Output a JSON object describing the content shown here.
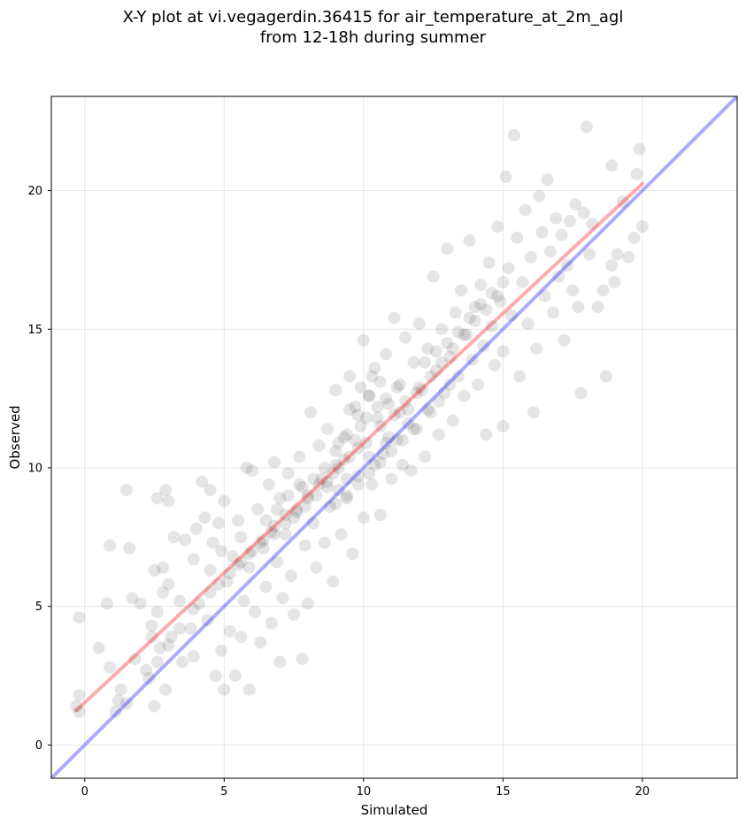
{
  "chart_data": {
    "type": "scatter",
    "title": "X-Y plot at vi.vegagerdin.36415 for air_temperature_at_2m_agl",
    "subtitle": "from 12-18h during summer",
    "xlabel": "Simulated",
    "ylabel": "Observed",
    "xlim": [
      -1.2,
      23.4
    ],
    "ylim": [
      -1.2,
      23.4
    ],
    "xticks": [
      "0",
      "5",
      "10",
      "15",
      "20"
    ],
    "yticks": [
      "0",
      "5",
      "10",
      "15",
      "20"
    ],
    "grid": true,
    "point_color": "#000000",
    "point_opacity": 0.1,
    "points": [
      [
        -0.2,
        4.6
      ],
      [
        -0.2,
        1.8
      ],
      [
        -0.3,
        1.4
      ],
      [
        -0.2,
        1.2
      ],
      [
        0.5,
        3.5
      ],
      [
        0.8,
        5.1
      ],
      [
        0.9,
        7.2
      ],
      [
        0.9,
        2.8
      ],
      [
        1.1,
        1.2
      ],
      [
        1.2,
        1.6
      ],
      [
        1.3,
        2.0
      ],
      [
        1.5,
        9.2
      ],
      [
        1.5,
        1.5
      ],
      [
        1.6,
        7.1
      ],
      [
        1.7,
        5.3
      ],
      [
        1.8,
        3.1
      ],
      [
        2.0,
        5.1
      ],
      [
        2.2,
        2.7
      ],
      [
        2.3,
        2.4
      ],
      [
        2.4,
        3.9
      ],
      [
        2.4,
        4.3
      ],
      [
        2.5,
        6.3
      ],
      [
        2.5,
        1.4
      ],
      [
        2.6,
        4.8
      ],
      [
        2.6,
        8.9
      ],
      [
        2.7,
        3.5
      ],
      [
        2.8,
        5.5
      ],
      [
        2.8,
        6.4
      ],
      [
        2.9,
        2.0
      ],
      [
        2.9,
        9.2
      ],
      [
        3.0,
        8.8
      ],
      [
        3.0,
        5.8
      ],
      [
        3.1,
        3.9
      ],
      [
        3.2,
        7.5
      ],
      [
        3.4,
        5.2
      ],
      [
        3.5,
        3.0
      ],
      [
        3.6,
        7.4
      ],
      [
        3.8,
        4.2
      ],
      [
        3.9,
        6.7
      ],
      [
        3.9,
        3.2
      ],
      [
        4.0,
        7.8
      ],
      [
        4.1,
        5.1
      ],
      [
        4.2,
        9.5
      ],
      [
        4.3,
        8.2
      ],
      [
        4.4,
        4.5
      ],
      [
        4.5,
        6.3
      ],
      [
        4.5,
        9.2
      ],
      [
        4.6,
        7.3
      ],
      [
        4.7,
        2.5
      ],
      [
        4.8,
        8.0
      ],
      [
        4.9,
        3.4
      ],
      [
        4.9,
        7.0
      ],
      [
        5.0,
        8.8
      ],
      [
        5.0,
        2.0
      ],
      [
        5.1,
        5.9
      ],
      [
        5.2,
        4.1
      ],
      [
        5.3,
        6.8
      ],
      [
        5.4,
        2.5
      ],
      [
        5.5,
        8.1
      ],
      [
        5.6,
        3.9
      ],
      [
        5.6,
        7.5
      ],
      [
        5.7,
        5.2
      ],
      [
        5.8,
        10.0
      ],
      [
        5.9,
        6.4
      ],
      [
        5.9,
        2.0
      ],
      [
        6.0,
        9.9
      ],
      [
        6.1,
        4.8
      ],
      [
        6.2,
        8.5
      ],
      [
        6.3,
        3.7
      ],
      [
        6.4,
        7.1
      ],
      [
        6.5,
        5.7
      ],
      [
        6.6,
        9.4
      ],
      [
        6.7,
        4.4
      ],
      [
        6.8,
        10.2
      ],
      [
        6.9,
        6.6
      ],
      [
        7.0,
        3.0
      ],
      [
        7.0,
        8.9
      ],
      [
        7.1,
        5.3
      ],
      [
        7.2,
        7.6
      ],
      [
        7.3,
        9.8
      ],
      [
        7.4,
        6.1
      ],
      [
        7.5,
        4.7
      ],
      [
        7.6,
        8.4
      ],
      [
        7.7,
        10.4
      ],
      [
        7.8,
        3.1
      ],
      [
        7.9,
        7.2
      ],
      [
        8.0,
        9.0
      ],
      [
        8.0,
        5.1
      ],
      [
        8.1,
        12.0
      ],
      [
        8.2,
        8.0
      ],
      [
        8.3,
        6.4
      ],
      [
        8.4,
        10.8
      ],
      [
        8.5,
        9.6
      ],
      [
        8.6,
        7.3
      ],
      [
        8.7,
        11.4
      ],
      [
        8.8,
        8.6
      ],
      [
        8.9,
        5.9
      ],
      [
        9.0,
        10.1
      ],
      [
        9.0,
        12.8
      ],
      [
        9.1,
        9.2
      ],
      [
        9.2,
        7.6
      ],
      [
        9.3,
        11.1
      ],
      [
        9.4,
        8.9
      ],
      [
        9.5,
        13.3
      ],
      [
        9.5,
        10.4
      ],
      [
        9.6,
        6.9
      ],
      [
        9.7,
        12.2
      ],
      [
        9.8,
        9.7
      ],
      [
        9.9,
        11.5
      ],
      [
        10.0,
        8.2
      ],
      [
        10.0,
        14.6
      ],
      [
        10.1,
        10.9
      ],
      [
        10.2,
        12.6
      ],
      [
        10.3,
        9.4
      ],
      [
        10.4,
        13.6
      ],
      [
        10.5,
        11.8
      ],
      [
        10.6,
        8.3
      ],
      [
        10.7,
        10.5
      ],
      [
        10.8,
        14.1
      ],
      [
        10.9,
        12.3
      ],
      [
        11.0,
        9.6
      ],
      [
        11.1,
        15.4
      ],
      [
        11.2,
        11.0
      ],
      [
        11.3,
        13.0
      ],
      [
        11.4,
        10.1
      ],
      [
        11.5,
        14.7
      ],
      [
        11.6,
        12.1
      ],
      [
        11.7,
        9.9
      ],
      [
        11.8,
        13.8
      ],
      [
        11.9,
        11.4
      ],
      [
        12.0,
        15.2
      ],
      [
        12.1,
        12.8
      ],
      [
        12.2,
        10.4
      ],
      [
        12.3,
        14.3
      ],
      [
        12.4,
        12.0
      ],
      [
        12.5,
        16.9
      ],
      [
        12.6,
        13.5
      ],
      [
        12.7,
        11.2
      ],
      [
        12.8,
        15.0
      ],
      [
        12.9,
        12.7
      ],
      [
        13.0,
        17.9
      ],
      [
        13.1,
        14.0
      ],
      [
        13.2,
        11.7
      ],
      [
        13.3,
        15.6
      ],
      [
        13.4,
        13.3
      ],
      [
        13.5,
        16.4
      ],
      [
        13.6,
        12.6
      ],
      [
        13.7,
        14.8
      ],
      [
        13.8,
        18.2
      ],
      [
        13.9,
        13.9
      ],
      [
        14.0,
        15.8
      ],
      [
        14.1,
        13.0
      ],
      [
        14.2,
        16.6
      ],
      [
        14.3,
        14.4
      ],
      [
        14.4,
        11.2
      ],
      [
        14.5,
        17.4
      ],
      [
        14.6,
        15.1
      ],
      [
        14.7,
        13.7
      ],
      [
        14.8,
        18.7
      ],
      [
        14.9,
        16.0
      ],
      [
        15.0,
        11.5
      ],
      [
        15.0,
        14.2
      ],
      [
        15.1,
        20.5
      ],
      [
        15.2,
        17.2
      ],
      [
        15.3,
        15.5
      ],
      [
        15.4,
        22.0
      ],
      [
        15.5,
        18.3
      ],
      [
        15.6,
        13.3
      ],
      [
        15.7,
        16.7
      ],
      [
        15.8,
        19.3
      ],
      [
        15.9,
        15.2
      ],
      [
        16.0,
        17.6
      ],
      [
        16.1,
        12.0
      ],
      [
        16.2,
        14.3
      ],
      [
        16.3,
        19.8
      ],
      [
        16.4,
        18.5
      ],
      [
        16.5,
        16.2
      ],
      [
        16.6,
        20.4
      ],
      [
        16.7,
        17.8
      ],
      [
        16.8,
        15.6
      ],
      [
        16.9,
        19.0
      ],
      [
        17.0,
        16.9
      ],
      [
        17.1,
        18.4
      ],
      [
        17.2,
        14.6
      ],
      [
        17.3,
        17.3
      ],
      [
        17.4,
        18.9
      ],
      [
        17.5,
        16.4
      ],
      [
        17.6,
        19.5
      ],
      [
        17.7,
        15.8
      ],
      [
        17.8,
        12.7
      ],
      [
        17.9,
        19.2
      ],
      [
        18.0,
        22.3
      ],
      [
        18.1,
        17.7
      ],
      [
        18.2,
        18.8
      ],
      [
        18.4,
        15.8
      ],
      [
        18.6,
        16.4
      ],
      [
        18.7,
        13.3
      ],
      [
        18.9,
        20.9
      ],
      [
        18.9,
        17.3
      ],
      [
        19.0,
        16.7
      ],
      [
        19.1,
        17.7
      ],
      [
        19.3,
        19.6
      ],
      [
        19.5,
        17.6
      ],
      [
        19.7,
        18.3
      ],
      [
        19.8,
        20.6
      ],
      [
        19.9,
        21.5
      ],
      [
        20.0,
        18.7
      ],
      [
        8.7,
        9.3
      ],
      [
        9.1,
        10.0
      ],
      [
        9.4,
        9.6
      ],
      [
        9.8,
        10.7
      ],
      [
        10.2,
        10.4
      ],
      [
        10.6,
        11.5
      ],
      [
        10.9,
        11.1
      ],
      [
        11.3,
        12.0
      ],
      [
        11.6,
        11.6
      ],
      [
        8.4,
        9.4
      ],
      [
        8.9,
        9.8
      ],
      [
        9.3,
        10.3
      ],
      [
        9.7,
        11.0
      ],
      [
        10.1,
        11.8
      ],
      [
        10.5,
        12.2
      ],
      [
        10.8,
        12.5
      ],
      [
        11.2,
        12.9
      ],
      [
        9.0,
        8.7
      ],
      [
        9.4,
        9.0
      ],
      [
        9.8,
        9.4
      ],
      [
        10.2,
        9.8
      ],
      [
        10.6,
        10.2
      ],
      [
        11.0,
        10.6
      ],
      [
        11.4,
        11.0
      ],
      [
        11.8,
        11.4
      ],
      [
        7.8,
        9.3
      ],
      [
        8.2,
        9.6
      ],
      [
        8.6,
        10.0
      ],
      [
        9.0,
        10.6
      ],
      [
        9.4,
        11.2
      ],
      [
        9.8,
        11.9
      ],
      [
        10.2,
        12.6
      ],
      [
        10.6,
        13.1
      ],
      [
        7.5,
        8.2
      ],
      [
        7.9,
        8.6
      ],
      [
        8.3,
        9.0
      ],
      [
        8.7,
        9.5
      ],
      [
        9.1,
        10.9
      ],
      [
        9.5,
        12.1
      ],
      [
        9.9,
        12.9
      ],
      [
        10.3,
        13.3
      ],
      [
        12.0,
        12.9
      ],
      [
        12.4,
        13.3
      ],
      [
        12.8,
        13.8
      ],
      [
        13.2,
        14.3
      ],
      [
        13.6,
        14.8
      ],
      [
        14.0,
        15.3
      ],
      [
        14.4,
        15.7
      ],
      [
        14.8,
        16.2
      ],
      [
        12.2,
        13.8
      ],
      [
        12.6,
        14.2
      ],
      [
        13.0,
        14.5
      ],
      [
        13.4,
        14.9
      ],
      [
        13.8,
        15.4
      ],
      [
        14.2,
        15.9
      ],
      [
        14.6,
        16.3
      ],
      [
        15.0,
        16.7
      ],
      [
        6.8,
        7.6
      ],
      [
        7.2,
        8.0
      ],
      [
        7.6,
        8.5
      ],
      [
        8.0,
        8.9
      ],
      [
        6.5,
        8.1
      ],
      [
        6.9,
        8.5
      ],
      [
        7.3,
        9.0
      ],
      [
        7.7,
        9.4
      ],
      [
        6.0,
        7.0
      ],
      [
        6.4,
        7.4
      ],
      [
        6.8,
        7.9
      ],
      [
        7.2,
        8.3
      ],
      [
        5.5,
        6.5
      ],
      [
        5.9,
        6.9
      ],
      [
        6.3,
        7.3
      ],
      [
        6.7,
        7.7
      ],
      [
        4.8,
        5.8
      ],
      [
        5.2,
        6.2
      ],
      [
        5.6,
        6.6
      ],
      [
        4.5,
        5.5
      ],
      [
        3.9,
        4.9
      ],
      [
        3.4,
        4.2
      ],
      [
        3.0,
        3.6
      ],
      [
        2.6,
        3.0
      ],
      [
        10.4,
        10.1
      ],
      [
        10.8,
        10.9
      ],
      [
        11.1,
        11.9
      ],
      [
        11.5,
        12.4
      ],
      [
        11.9,
        12.7
      ],
      [
        12.3,
        12.1
      ],
      [
        12.7,
        12.4
      ],
      [
        13.1,
        13.0
      ]
    ],
    "series": [
      {
        "type": "line",
        "color": "#ff0000",
        "opacity": 0.33,
        "points": [
          [
            -0.3,
            1.25
          ],
          [
            20.0,
            20.25
          ]
        ]
      },
      {
        "type": "line",
        "color": "#0000ff",
        "opacity": 0.33,
        "points": [
          [
            -1.2,
            -1.2
          ],
          [
            23.4,
            23.4
          ]
        ]
      }
    ]
  }
}
